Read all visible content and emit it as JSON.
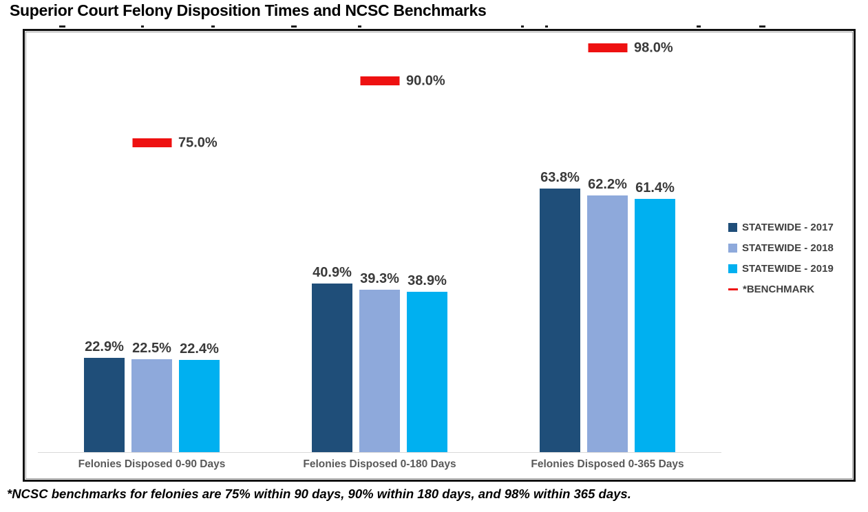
{
  "page": {
    "title": "Superior Court Felony Disposition Times and NCSC Benchmarks",
    "footnote": "*NCSC benchmarks for felonies are 75% within 90 days, 90% within 180 days, and 98% within 365 days."
  },
  "colors": {
    "series_2017": "#1F4E79",
    "series_2018": "#8EA9DB",
    "series_2019": "#00B0F0",
    "benchmark": "#EE1111",
    "value_label": "#3A3A3A",
    "category_label": "#595959",
    "legend_text": "#404040",
    "axis_line": "#D9D9D9"
  },
  "legend": {
    "items": [
      {
        "label": "STATEWIDE - 2017",
        "swatch": "square",
        "color": "#1F4E79"
      },
      {
        "label": "STATEWIDE - 2018",
        "swatch": "square",
        "color": "#8EA9DB"
      },
      {
        "label": "STATEWIDE - 2019",
        "swatch": "square",
        "color": "#00B0F0"
      },
      {
        "label": "*BENCHMARK",
        "swatch": "dash",
        "color": "#EE1111"
      }
    ]
  },
  "chart_data": {
    "type": "bar",
    "title": "Superior Court Felony Disposition Times and NCSC Benchmarks",
    "categories": [
      "Felonies Disposed 0-90 Days",
      "Felonies Disposed 0-180 Days",
      "Felonies Disposed 0-365 Days"
    ],
    "series": [
      {
        "name": "STATEWIDE - 2017",
        "color": "#1F4E79",
        "values": [
          22.9,
          40.9,
          63.8
        ],
        "labels": [
          "22.9%",
          "40.9%",
          "63.8%"
        ]
      },
      {
        "name": "STATEWIDE - 2018",
        "color": "#8EA9DB",
        "values": [
          22.5,
          39.3,
          62.2
        ],
        "labels": [
          "22.5%",
          "39.3%",
          "62.2%"
        ]
      },
      {
        "name": "STATEWIDE - 2019",
        "color": "#00B0F0",
        "values": [
          22.4,
          38.9,
          61.4
        ],
        "labels": [
          "22.4%",
          "38.9%",
          "61.4%"
        ]
      }
    ],
    "benchmarks": {
      "name": "*BENCHMARK",
      "color": "#EE1111",
      "values": [
        75.0,
        90.0,
        98.0
      ],
      "labels": [
        "75.0%",
        "90.0%",
        "98.0%"
      ]
    },
    "xlabel": "",
    "ylabel": "",
    "ylim": [
      0,
      102
    ],
    "grid": false,
    "legend_position": "right",
    "value_labels_shown": true
  }
}
